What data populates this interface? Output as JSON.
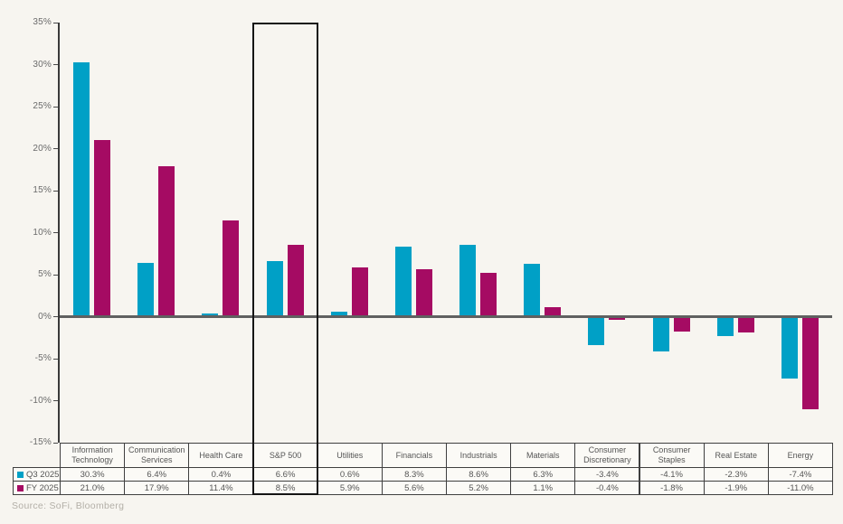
{
  "page": {
    "source_note": "Source: SoFi, Bloomberg"
  },
  "chart_data": {
    "type": "bar",
    "title": "",
    "xlabel": "",
    "ylabel": "",
    "categories": [
      "Information Technology",
      "Communication Services",
      "Health Care",
      "S&P 500",
      "Utilities",
      "Financials",
      "Industrials",
      "Materials",
      "Consumer Discretionary",
      "Consumer Staples",
      "Real Estate",
      "Energy"
    ],
    "series": [
      {
        "name": "Q3 2025",
        "color": "#00a0c6",
        "values": [
          30.3,
          6.4,
          0.4,
          6.6,
          0.6,
          8.3,
          8.6,
          6.3,
          -3.4,
          -4.1,
          -2.3,
          -7.4
        ]
      },
      {
        "name": "FY 2025",
        "color": "#a50b63",
        "values": [
          21.0,
          17.9,
          11.4,
          8.5,
          5.9,
          5.6,
          5.2,
          1.1,
          -0.4,
          -1.8,
          -1.9,
          -11.0
        ]
      }
    ],
    "ylim": [
      -15,
      35
    ],
    "ytick_step": 5,
    "ytick_suffix": "%",
    "value_format": "one-decimal-percent",
    "grid": false,
    "zero_line": true,
    "highlight_category": "S&P 500",
    "legend_position": "table-rows-left"
  },
  "colors": {
    "q3_series": "#00a0c6",
    "fy_series": "#a50b63",
    "background": "#f7f5f0",
    "axis": "#3a3a3a",
    "zero_line": "#606060",
    "table_border": "#3f3f3f",
    "table_cell_bg": "#fbfaf6",
    "tick_text": "#6b6b6b",
    "table_text": "#555555",
    "highlight_border": "#151515",
    "source_text": "#b3afa7"
  }
}
